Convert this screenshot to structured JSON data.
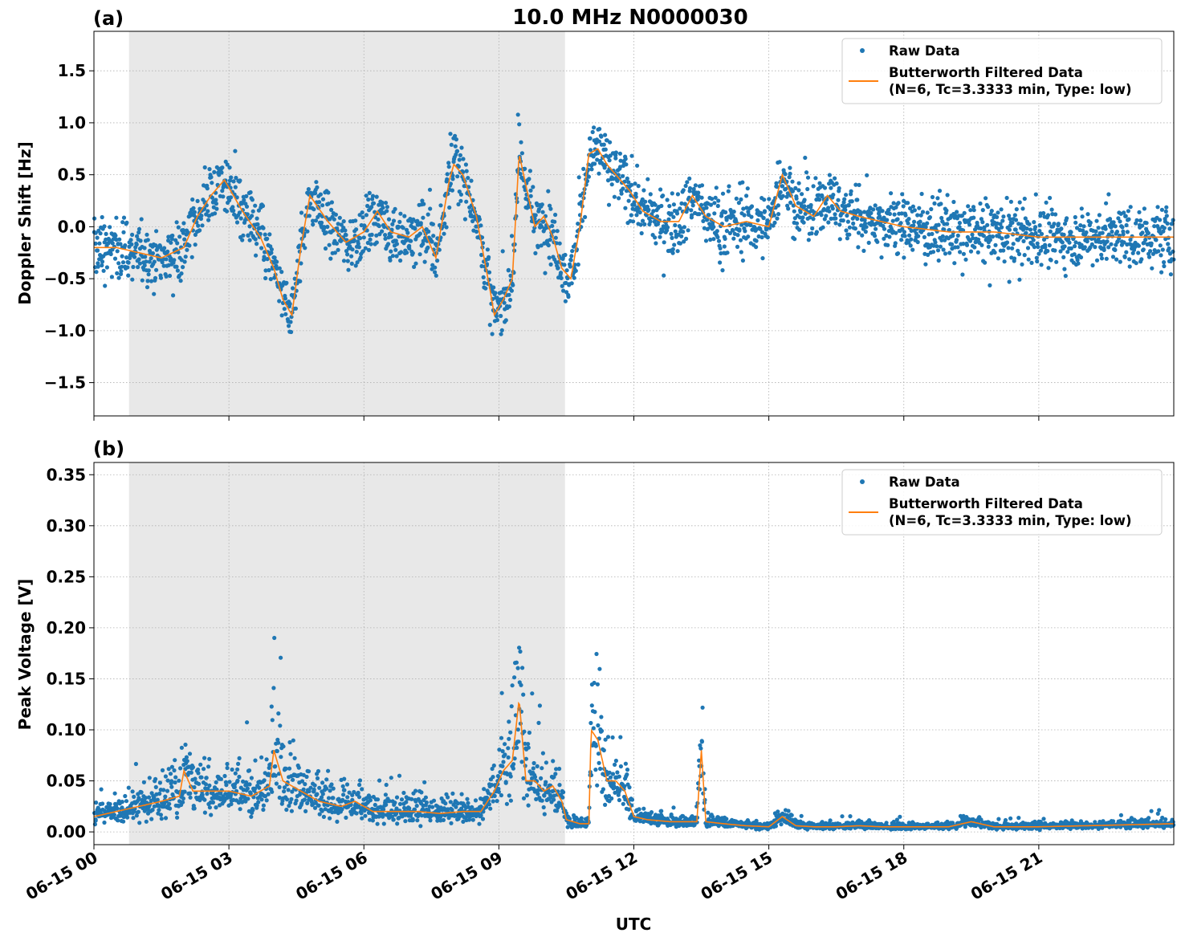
{
  "figure": {
    "title": "10.0 MHz N0000030",
    "xlabel": "UTC",
    "colors": {
      "raw": "#1f77b4",
      "filtered": "#ff7f0e",
      "shade": "#e8e8e8",
      "grid": "#b0b0b0"
    }
  },
  "chart_data": [
    {
      "type": "scatter",
      "panel_label": "(a)",
      "ylabel": "Doppler Shift [Hz]",
      "xlim_hours": [
        0,
        24
      ],
      "ylim": [
        -1.82,
        1.88
      ],
      "yticks": [
        -1.5,
        -1.0,
        -0.5,
        0.0,
        0.5,
        1.0,
        1.5
      ],
      "ytick_labels": [
        "−1.5",
        "−1.0",
        "−0.5",
        "0.0",
        "0.5",
        "1.0",
        "1.5"
      ],
      "shaded_region_hours": [
        0.78,
        10.47
      ],
      "grid": true,
      "legend_position": "top-right",
      "legend": [
        "Raw Data",
        "Butterworth Filtered Data",
        "(N=6, Tc=3.3333 min, Type: low)"
      ],
      "series": [
        {
          "name": "Butterworth Filtered Data",
          "style": "line",
          "x": [
            0,
            0.5,
            1.0,
            1.5,
            2.0,
            2.3,
            2.6,
            2.9,
            3.3,
            3.7,
            4.0,
            4.2,
            4.4,
            4.6,
            4.8,
            5.2,
            5.6,
            6.0,
            6.3,
            6.6,
            7.0,
            7.3,
            7.6,
            7.9,
            8.0,
            8.2,
            8.5,
            8.8,
            8.9,
            9.1,
            9.3,
            9.45,
            9.6,
            9.8,
            10.0,
            10.2,
            10.4,
            10.6,
            10.8,
            11.0,
            11.2,
            11.4,
            11.6,
            11.9,
            12.2,
            12.6,
            13.0,
            13.3,
            13.6,
            14.0,
            14.5,
            15.0,
            15.3,
            15.6,
            16.0,
            16.3,
            16.6,
            17.0,
            17.5,
            18.0,
            19.0,
            20.0,
            21.0,
            22.0,
            23.0,
            24.0
          ],
          "y": [
            -0.2,
            -0.2,
            -0.25,
            -0.3,
            -0.2,
            0.1,
            0.3,
            0.45,
            0.15,
            -0.1,
            -0.4,
            -0.7,
            -0.85,
            -0.2,
            0.3,
            0.05,
            -0.15,
            -0.05,
            0.15,
            -0.05,
            -0.1,
            0.0,
            -0.3,
            0.45,
            0.6,
            0.5,
            0.1,
            -0.6,
            -0.85,
            -0.7,
            -0.5,
            0.7,
            0.4,
            0.0,
            0.1,
            -0.1,
            -0.4,
            -0.5,
            0.0,
            0.7,
            0.75,
            0.6,
            0.5,
            0.35,
            0.15,
            0.05,
            0.05,
            0.3,
            0.1,
            0.0,
            0.05,
            0.0,
            0.5,
            0.2,
            0.1,
            0.3,
            0.15,
            0.1,
            0.05,
            0.0,
            -0.05,
            -0.05,
            -0.1,
            -0.1,
            -0.1,
            -0.1
          ]
        },
        {
          "name": "Raw Data",
          "style": "points",
          "note": "dense scatter around filtered curve"
        }
      ]
    },
    {
      "type": "scatter",
      "panel_label": "(b)",
      "ylabel": "Peak Voltage [V]",
      "xlim_hours": [
        0,
        24
      ],
      "ylim": [
        -0.0125,
        0.362
      ],
      "yticks": [
        0.0,
        0.05,
        0.1,
        0.15,
        0.2,
        0.25,
        0.3,
        0.35
      ],
      "ytick_labels": [
        "0.00",
        "0.05",
        "0.10",
        "0.15",
        "0.20",
        "0.25",
        "0.30",
        "0.35"
      ],
      "shaded_region_hours": [
        0.78,
        10.47
      ],
      "grid": true,
      "legend_position": "top-right",
      "legend": [
        "Raw Data",
        "Butterworth Filtered Data",
        "(N=6, Tc=3.3333 min, Type: low)"
      ],
      "xticks_hours": [
        0,
        3,
        6,
        9,
        12,
        15,
        18,
        21
      ],
      "xtick_labels": [
        "06-15 00",
        "06-15 03",
        "06-15 06",
        "06-15 09",
        "06-15 12",
        "06-15 15",
        "06-15 18",
        "06-15 21"
      ],
      "series": [
        {
          "name": "Butterworth Filtered Data",
          "style": "line",
          "x": [
            0,
            0.5,
            1.0,
            1.5,
            1.9,
            2.0,
            2.2,
            2.6,
            3.0,
            3.5,
            3.9,
            4.0,
            4.2,
            4.6,
            5.0,
            5.5,
            5.8,
            6.2,
            6.7,
            7.2,
            7.7,
            8.2,
            8.6,
            8.9,
            9.1,
            9.3,
            9.45,
            9.6,
            9.8,
            10.0,
            10.2,
            10.4,
            10.5,
            10.8,
            11.0,
            11.05,
            11.2,
            11.4,
            11.6,
            11.8,
            12.0,
            12.3,
            12.8,
            13.0,
            13.4,
            13.5,
            13.6,
            14.0,
            14.5,
            15.0,
            15.3,
            15.6,
            16.0,
            16.5,
            17.0,
            17.5,
            18.0,
            19.0,
            19.5,
            20.0,
            21.0,
            22.0,
            23.0,
            24.0
          ],
          "y": [
            0.015,
            0.02,
            0.025,
            0.03,
            0.035,
            0.06,
            0.04,
            0.04,
            0.04,
            0.035,
            0.045,
            0.08,
            0.05,
            0.04,
            0.03,
            0.025,
            0.03,
            0.02,
            0.02,
            0.02,
            0.018,
            0.02,
            0.02,
            0.04,
            0.06,
            0.07,
            0.13,
            0.05,
            0.05,
            0.04,
            0.045,
            0.03,
            0.012,
            0.008,
            0.008,
            0.1,
            0.09,
            0.05,
            0.05,
            0.04,
            0.015,
            0.012,
            0.01,
            0.01,
            0.01,
            0.08,
            0.01,
            0.008,
            0.006,
            0.005,
            0.015,
            0.006,
            0.005,
            0.005,
            0.006,
            0.005,
            0.005,
            0.005,
            0.01,
            0.005,
            0.005,
            0.006,
            0.007,
            0.008
          ]
        },
        {
          "name": "Raw Data",
          "style": "points",
          "note": "dense scatter around filtered curve with spikes"
        }
      ]
    }
  ]
}
